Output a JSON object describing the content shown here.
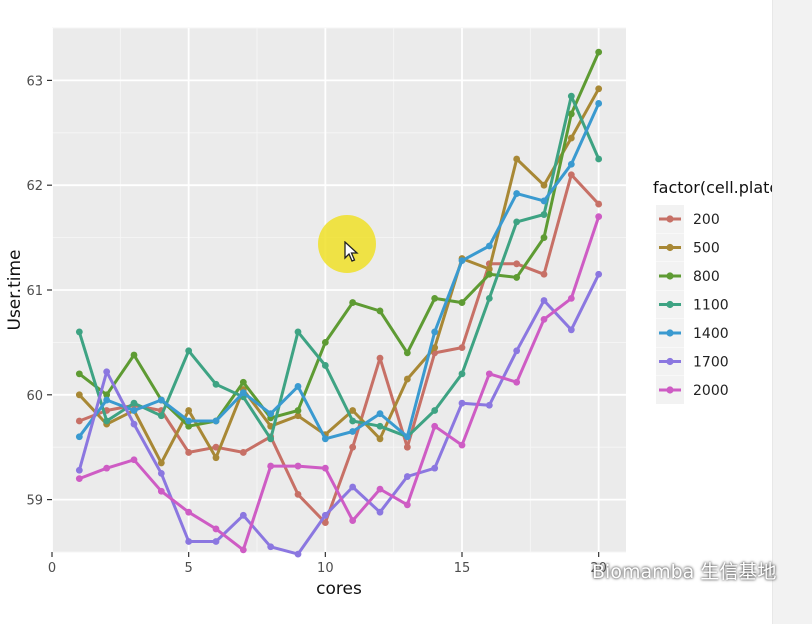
{
  "chart_data": {
    "type": "line",
    "xlabel": "cores",
    "ylabel": "User.time",
    "xlim": [
      0,
      21
    ],
    "ylim": [
      58.5,
      63.5
    ],
    "xticks": [
      0,
      5,
      10,
      15,
      20
    ],
    "yticks": [
      59,
      60,
      61,
      62,
      63
    ],
    "grid": true,
    "legend_title": "factor(cell.plate)",
    "legend_position": "right",
    "x": [
      1,
      2,
      3,
      4,
      5,
      6,
      7,
      8,
      9,
      10,
      11,
      12,
      13,
      14,
      15,
      16,
      17,
      18,
      19,
      20
    ],
    "series": [
      {
        "name": "200",
        "color": "#C77066",
        "values": [
          59.75,
          59.85,
          59.9,
          59.85,
          59.45,
          59.5,
          59.45,
          59.6,
          59.05,
          58.78,
          59.5,
          60.35,
          59.5,
          60.4,
          60.45,
          61.25,
          61.25,
          61.15,
          62.1,
          61.82
        ]
      },
      {
        "name": "500",
        "color": "#A88835",
        "values": [
          60.0,
          59.72,
          59.85,
          59.35,
          59.85,
          59.4,
          60.05,
          59.7,
          59.8,
          59.62,
          59.85,
          59.58,
          60.15,
          60.45,
          61.3,
          61.2,
          62.25,
          62.0,
          62.45,
          62.92
        ]
      },
      {
        "name": "800",
        "color": "#5E9B33",
        "values": [
          60.2,
          60.0,
          60.38,
          59.95,
          59.7,
          59.75,
          60.12,
          59.78,
          59.85,
          60.5,
          60.88,
          60.8,
          60.4,
          60.92,
          60.88,
          61.15,
          61.12,
          61.5,
          62.68,
          63.27
        ]
      },
      {
        "name": "1100",
        "color": "#3EA383",
        "values": [
          60.6,
          59.75,
          59.92,
          59.8,
          60.42,
          60.1,
          59.98,
          59.58,
          60.6,
          60.28,
          59.75,
          59.7,
          59.6,
          59.85,
          60.2,
          60.92,
          61.65,
          61.72,
          62.85,
          62.25
        ]
      },
      {
        "name": "1400",
        "color": "#3A9AD0",
        "values": [
          59.6,
          59.95,
          59.85,
          59.95,
          59.75,
          59.75,
          60.02,
          59.82,
          60.08,
          59.58,
          59.65,
          59.82,
          59.6,
          60.6,
          61.28,
          61.42,
          61.92,
          61.85,
          62.2,
          62.78
        ]
      },
      {
        "name": "1700",
        "color": "#8B77E0",
        "values": [
          59.28,
          60.22,
          59.72,
          59.25,
          58.6,
          58.6,
          58.85,
          58.55,
          58.48,
          58.85,
          59.12,
          58.88,
          59.22,
          59.3,
          59.92,
          59.9,
          60.42,
          60.9,
          60.62,
          61.15
        ]
      },
      {
        "name": "2000",
        "color": "#CE5CC4",
        "values": [
          59.2,
          59.3,
          59.38,
          59.08,
          58.88,
          58.72,
          58.52,
          59.32,
          59.32,
          59.3,
          58.8,
          59.1,
          58.95,
          59.7,
          59.52,
          60.2,
          60.12,
          60.72,
          60.92,
          61.7
        ]
      }
    ]
  },
  "watermark": {
    "icon": "wechat-icon",
    "text": "Biomamba 生信基地"
  }
}
